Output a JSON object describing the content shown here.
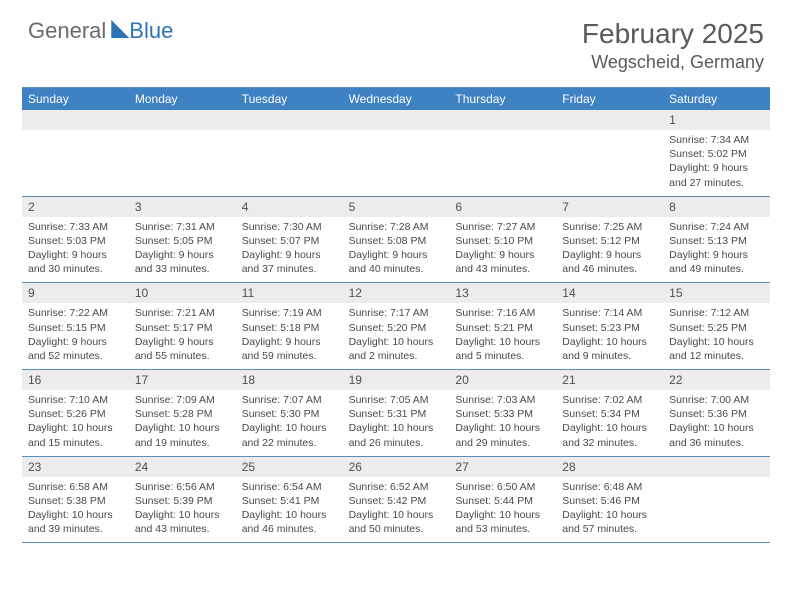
{
  "brand": {
    "word1": "General",
    "word2": "Blue"
  },
  "title": {
    "month": "February 2025",
    "location": "Wegscheid, Germany"
  },
  "colors": {
    "header_bg": "#3e82c4",
    "header_text": "#ffffff",
    "rule": "#5b8dbb",
    "daynum_bg": "#ececec",
    "body_text": "#4a4a4a",
    "title_text": "#5a5a5a",
    "logo_grey": "#6a6a6a",
    "logo_blue": "#2e74b5"
  },
  "weekday_headers": [
    "Sunday",
    "Monday",
    "Tuesday",
    "Wednesday",
    "Thursday",
    "Friday",
    "Saturday"
  ],
  "weeks": [
    [
      {
        "n": "",
        "sun": "",
        "set": "",
        "dl1": "",
        "dl2": ""
      },
      {
        "n": "",
        "sun": "",
        "set": "",
        "dl1": "",
        "dl2": ""
      },
      {
        "n": "",
        "sun": "",
        "set": "",
        "dl1": "",
        "dl2": ""
      },
      {
        "n": "",
        "sun": "",
        "set": "",
        "dl1": "",
        "dl2": ""
      },
      {
        "n": "",
        "sun": "",
        "set": "",
        "dl1": "",
        "dl2": ""
      },
      {
        "n": "",
        "sun": "",
        "set": "",
        "dl1": "",
        "dl2": ""
      },
      {
        "n": "1",
        "sun": "Sunrise: 7:34 AM",
        "set": "Sunset: 5:02 PM",
        "dl1": "Daylight: 9 hours",
        "dl2": "and 27 minutes."
      }
    ],
    [
      {
        "n": "2",
        "sun": "Sunrise: 7:33 AM",
        "set": "Sunset: 5:03 PM",
        "dl1": "Daylight: 9 hours",
        "dl2": "and 30 minutes."
      },
      {
        "n": "3",
        "sun": "Sunrise: 7:31 AM",
        "set": "Sunset: 5:05 PM",
        "dl1": "Daylight: 9 hours",
        "dl2": "and 33 minutes."
      },
      {
        "n": "4",
        "sun": "Sunrise: 7:30 AM",
        "set": "Sunset: 5:07 PM",
        "dl1": "Daylight: 9 hours",
        "dl2": "and 37 minutes."
      },
      {
        "n": "5",
        "sun": "Sunrise: 7:28 AM",
        "set": "Sunset: 5:08 PM",
        "dl1": "Daylight: 9 hours",
        "dl2": "and 40 minutes."
      },
      {
        "n": "6",
        "sun": "Sunrise: 7:27 AM",
        "set": "Sunset: 5:10 PM",
        "dl1": "Daylight: 9 hours",
        "dl2": "and 43 minutes."
      },
      {
        "n": "7",
        "sun": "Sunrise: 7:25 AM",
        "set": "Sunset: 5:12 PM",
        "dl1": "Daylight: 9 hours",
        "dl2": "and 46 minutes."
      },
      {
        "n": "8",
        "sun": "Sunrise: 7:24 AM",
        "set": "Sunset: 5:13 PM",
        "dl1": "Daylight: 9 hours",
        "dl2": "and 49 minutes."
      }
    ],
    [
      {
        "n": "9",
        "sun": "Sunrise: 7:22 AM",
        "set": "Sunset: 5:15 PM",
        "dl1": "Daylight: 9 hours",
        "dl2": "and 52 minutes."
      },
      {
        "n": "10",
        "sun": "Sunrise: 7:21 AM",
        "set": "Sunset: 5:17 PM",
        "dl1": "Daylight: 9 hours",
        "dl2": "and 55 minutes."
      },
      {
        "n": "11",
        "sun": "Sunrise: 7:19 AM",
        "set": "Sunset: 5:18 PM",
        "dl1": "Daylight: 9 hours",
        "dl2": "and 59 minutes."
      },
      {
        "n": "12",
        "sun": "Sunrise: 7:17 AM",
        "set": "Sunset: 5:20 PM",
        "dl1": "Daylight: 10 hours",
        "dl2": "and 2 minutes."
      },
      {
        "n": "13",
        "sun": "Sunrise: 7:16 AM",
        "set": "Sunset: 5:21 PM",
        "dl1": "Daylight: 10 hours",
        "dl2": "and 5 minutes."
      },
      {
        "n": "14",
        "sun": "Sunrise: 7:14 AM",
        "set": "Sunset: 5:23 PM",
        "dl1": "Daylight: 10 hours",
        "dl2": "and 9 minutes."
      },
      {
        "n": "15",
        "sun": "Sunrise: 7:12 AM",
        "set": "Sunset: 5:25 PM",
        "dl1": "Daylight: 10 hours",
        "dl2": "and 12 minutes."
      }
    ],
    [
      {
        "n": "16",
        "sun": "Sunrise: 7:10 AM",
        "set": "Sunset: 5:26 PM",
        "dl1": "Daylight: 10 hours",
        "dl2": "and 15 minutes."
      },
      {
        "n": "17",
        "sun": "Sunrise: 7:09 AM",
        "set": "Sunset: 5:28 PM",
        "dl1": "Daylight: 10 hours",
        "dl2": "and 19 minutes."
      },
      {
        "n": "18",
        "sun": "Sunrise: 7:07 AM",
        "set": "Sunset: 5:30 PM",
        "dl1": "Daylight: 10 hours",
        "dl2": "and 22 minutes."
      },
      {
        "n": "19",
        "sun": "Sunrise: 7:05 AM",
        "set": "Sunset: 5:31 PM",
        "dl1": "Daylight: 10 hours",
        "dl2": "and 26 minutes."
      },
      {
        "n": "20",
        "sun": "Sunrise: 7:03 AM",
        "set": "Sunset: 5:33 PM",
        "dl1": "Daylight: 10 hours",
        "dl2": "and 29 minutes."
      },
      {
        "n": "21",
        "sun": "Sunrise: 7:02 AM",
        "set": "Sunset: 5:34 PM",
        "dl1": "Daylight: 10 hours",
        "dl2": "and 32 minutes."
      },
      {
        "n": "22",
        "sun": "Sunrise: 7:00 AM",
        "set": "Sunset: 5:36 PM",
        "dl1": "Daylight: 10 hours",
        "dl2": "and 36 minutes."
      }
    ],
    [
      {
        "n": "23",
        "sun": "Sunrise: 6:58 AM",
        "set": "Sunset: 5:38 PM",
        "dl1": "Daylight: 10 hours",
        "dl2": "and 39 minutes."
      },
      {
        "n": "24",
        "sun": "Sunrise: 6:56 AM",
        "set": "Sunset: 5:39 PM",
        "dl1": "Daylight: 10 hours",
        "dl2": "and 43 minutes."
      },
      {
        "n": "25",
        "sun": "Sunrise: 6:54 AM",
        "set": "Sunset: 5:41 PM",
        "dl1": "Daylight: 10 hours",
        "dl2": "and 46 minutes."
      },
      {
        "n": "26",
        "sun": "Sunrise: 6:52 AM",
        "set": "Sunset: 5:42 PM",
        "dl1": "Daylight: 10 hours",
        "dl2": "and 50 minutes."
      },
      {
        "n": "27",
        "sun": "Sunrise: 6:50 AM",
        "set": "Sunset: 5:44 PM",
        "dl1": "Daylight: 10 hours",
        "dl2": "and 53 minutes."
      },
      {
        "n": "28",
        "sun": "Sunrise: 6:48 AM",
        "set": "Sunset: 5:46 PM",
        "dl1": "Daylight: 10 hours",
        "dl2": "and 57 minutes."
      },
      {
        "n": "",
        "sun": "",
        "set": "",
        "dl1": "",
        "dl2": ""
      }
    ]
  ]
}
